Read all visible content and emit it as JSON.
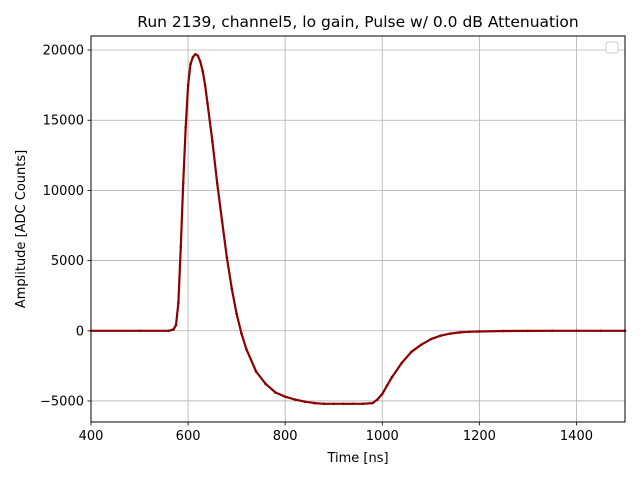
{
  "chart_data": {
    "type": "scatter",
    "title": "Run 2139, channel5, lo gain, Pulse w/ 0.0 dB Attenuation",
    "xlabel": "Time [ns]",
    "ylabel": "Amplitude [ADC Counts]",
    "xlim": [
      400,
      1500
    ],
    "ylim": [
      -6500,
      21000
    ],
    "xticks": [
      400,
      600,
      800,
      1000,
      1200,
      1400
    ],
    "yticks": [
      -5000,
      0,
      5000,
      10000,
      15000,
      20000
    ],
    "ytick_labels": [
      "−5000",
      "0",
      "5000",
      "10000",
      "15000",
      "20000"
    ],
    "grid": true,
    "legend": "top-right (empty)",
    "marker_color": "#8b0000",
    "series": [
      {
        "x": [
          400,
          500,
          560,
          570,
          575,
          580,
          585,
          590,
          595,
          600,
          605,
          610,
          615,
          620,
          625,
          630,
          635,
          640,
          650,
          660,
          670,
          680,
          690,
          700,
          710,
          720,
          740,
          760,
          780,
          800,
          820,
          840,
          860,
          880,
          900,
          920,
          940,
          960,
          980,
          990,
          1000,
          1010,
          1020,
          1040,
          1060,
          1080,
          1100,
          1120,
          1140,
          1160,
          1180,
          1200,
          1250,
          1300,
          1350,
          1400,
          1450,
          1500
        ],
        "y": [
          0,
          0,
          0,
          100,
          400,
          2000,
          6000,
          10500,
          14500,
          17500,
          19000,
          19500,
          19700,
          19600,
          19200,
          18500,
          17500,
          16200,
          13500,
          10500,
          7800,
          5200,
          3000,
          1200,
          -200,
          -1300,
          -2900,
          -3800,
          -4400,
          -4700,
          -4900,
          -5050,
          -5150,
          -5200,
          -5200,
          -5200,
          -5200,
          -5200,
          -5150,
          -4900,
          -4500,
          -3900,
          -3300,
          -2300,
          -1500,
          -1000,
          -600,
          -350,
          -200,
          -120,
          -70,
          -50,
          -20,
          -10,
          0,
          0,
          0,
          0
        ]
      }
    ]
  }
}
